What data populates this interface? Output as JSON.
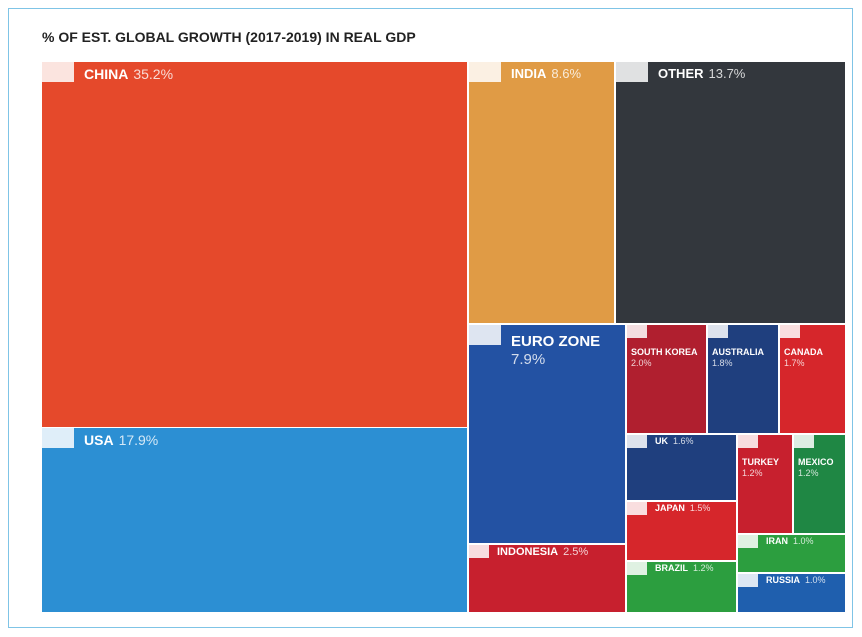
{
  "chart_data": {
    "type": "treemap",
    "title": "% OF EST. GLOBAL GROWTH (2017-2019) IN REAL GDP",
    "categories": [
      "CHINA",
      "USA",
      "INDIA",
      "OTHER",
      "EURO ZONE",
      "INDONESIA",
      "SOUTH KOREA",
      "AUSTRALIA",
      "CANADA",
      "UK",
      "JAPAN",
      "BRAZIL",
      "TURKEY",
      "MEXICO",
      "IRAN",
      "RUSSIA"
    ],
    "values": [
      35.2,
      17.9,
      8.6,
      13.7,
      7.9,
      2.5,
      2.0,
      1.8,
      1.7,
      1.6,
      1.5,
      1.2,
      1.2,
      1.2,
      1.0,
      1.0
    ],
    "value_labels": [
      "35.2%",
      "17.9%",
      "8.6%",
      "13.7%",
      "7.9%",
      "2.5%",
      "2.0%",
      "1.8%",
      "1.7%",
      "1.6%",
      "1.5%",
      "1.2%",
      "1.2%",
      "1.2%",
      "1.0%",
      "1.0%"
    ],
    "colors": [
      "#e5492b",
      "#2c8fd3",
      "#e09b45",
      "#33373d",
      "#2352a3",
      "#c7202e",
      "#b01f2f",
      "#1f3f7e",
      "#d6262b",
      "#1f3f7e",
      "#d6262b",
      "#2c9e3f",
      "#c7202e",
      "#1f8744",
      "#2c9e3f",
      "#1f5fae"
    ]
  }
}
